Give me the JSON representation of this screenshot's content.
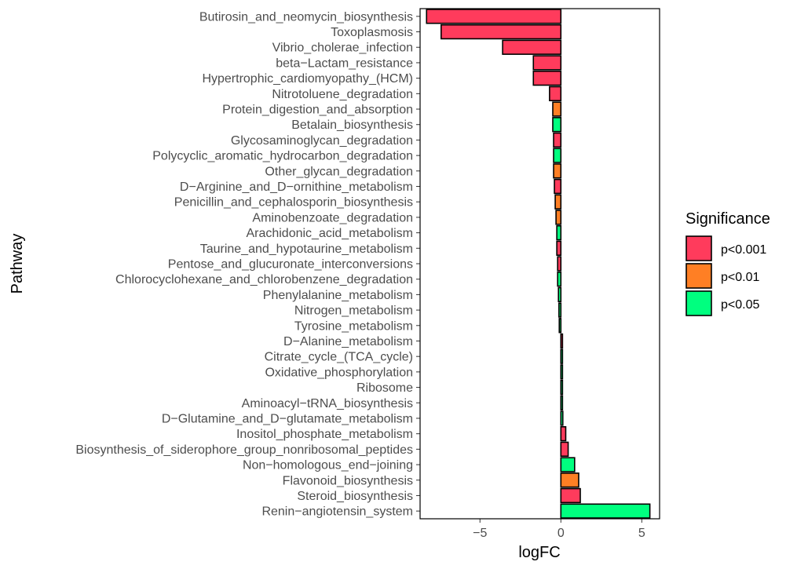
{
  "chart_data": {
    "type": "bar",
    "orientation": "horizontal",
    "title": "",
    "xlabel": "logFC",
    "ylabel": "Pathway",
    "xlim": [
      -8.7,
      6.1
    ],
    "xticks": [
      -5,
      0,
      5
    ],
    "xtick_labels": [
      "−5",
      "0",
      "5"
    ],
    "grid": false,
    "legend": {
      "title": "Significance",
      "position": "right",
      "entries": [
        {
          "label": "p<0.001",
          "color": "#FF3B5C"
        },
        {
          "label": "p<0.01",
          "color": "#FF7F24"
        },
        {
          "label": "p<0.05",
          "color": "#00FF7F"
        }
      ]
    },
    "bars": [
      {
        "pathway": "Butirosin_and_neomycin_biosynthesis",
        "logFC": -8.3,
        "significance": "p<0.001"
      },
      {
        "pathway": "Toxoplasmosis",
        "logFC": -7.4,
        "significance": "p<0.001"
      },
      {
        "pathway": "Vibrio_cholerae_infection",
        "logFC": -3.6,
        "significance": "p<0.001"
      },
      {
        "pathway": "beta−Lactam_resistance",
        "logFC": -1.7,
        "significance": "p<0.001"
      },
      {
        "pathway": "Hypertrophic_cardiomyopathy_(HCM)",
        "logFC": -1.7,
        "significance": "p<0.001"
      },
      {
        "pathway": "Nitrotoluene_degradation",
        "logFC": -0.7,
        "significance": "p<0.001"
      },
      {
        "pathway": "Protein_digestion_and_absorption",
        "logFC": -0.5,
        "significance": "p<0.01"
      },
      {
        "pathway": "Betalain_biosynthesis",
        "logFC": -0.5,
        "significance": "p<0.05"
      },
      {
        "pathway": "Glycosaminoglycan_degradation",
        "logFC": -0.45,
        "significance": "p<0.001"
      },
      {
        "pathway": "Polycyclic_aromatic_hydrocarbon_degradation",
        "logFC": -0.45,
        "significance": "p<0.05"
      },
      {
        "pathway": "Other_glycan_degradation",
        "logFC": -0.45,
        "significance": "p<0.01"
      },
      {
        "pathway": "D−Arginine_and_D−ornithine_metabolism",
        "logFC": -0.4,
        "significance": "p<0.001"
      },
      {
        "pathway": "Penicillin_and_cephalosporin_biosynthesis",
        "logFC": -0.35,
        "significance": "p<0.01"
      },
      {
        "pathway": "Aminobenzoate_degradation",
        "logFC": -0.3,
        "significance": "p<0.01"
      },
      {
        "pathway": "Arachidonic_acid_metabolism",
        "logFC": -0.25,
        "significance": "p<0.05"
      },
      {
        "pathway": "Taurine_and_hypotaurine_metabolism",
        "logFC": -0.25,
        "significance": "p<0.001"
      },
      {
        "pathway": "Pentose_and_glucuronate_interconversions",
        "logFC": -0.2,
        "significance": "p<0.001"
      },
      {
        "pathway": "Chlorocyclohexane_and_chlorobenzene_degradation",
        "logFC": -0.2,
        "significance": "p<0.05"
      },
      {
        "pathway": "Phenylalanine_metabolism",
        "logFC": -0.15,
        "significance": "p<0.05"
      },
      {
        "pathway": "Nitrogen_metabolism",
        "logFC": -0.12,
        "significance": "p<0.05"
      },
      {
        "pathway": "Tyrosine_metabolism",
        "logFC": -0.1,
        "significance": "p<0.05"
      },
      {
        "pathway": "D−Alanine_metabolism",
        "logFC": 0.1,
        "significance": "p<0.001"
      },
      {
        "pathway": "Citrate_cycle_(TCA_cycle)",
        "logFC": 0.1,
        "significance": "p<0.05"
      },
      {
        "pathway": "Oxidative_phosphorylation",
        "logFC": 0.1,
        "significance": "p<0.05"
      },
      {
        "pathway": "Ribosome",
        "logFC": 0.1,
        "significance": "p<0.05"
      },
      {
        "pathway": "Aminoacyl−tRNA_biosynthesis",
        "logFC": 0.1,
        "significance": "p<0.05"
      },
      {
        "pathway": "D−Glutamine_and_D−glutamate_metabolism",
        "logFC": 0.12,
        "significance": "p<0.05"
      },
      {
        "pathway": "Inositol_phosphate_metabolism",
        "logFC": 0.3,
        "significance": "p<0.001"
      },
      {
        "pathway": "Biosynthesis_of_siderophore_group_nonribosomal_peptides",
        "logFC": 0.45,
        "significance": "p<0.001"
      },
      {
        "pathway": "Non−homologous_end−joining",
        "logFC": 0.85,
        "significance": "p<0.05"
      },
      {
        "pathway": "Flavonoid_biosynthesis",
        "logFC": 1.1,
        "significance": "p<0.01"
      },
      {
        "pathway": "Steroid_biosynthesis",
        "logFC": 1.2,
        "significance": "p<0.001"
      },
      {
        "pathway": "Renin−angiotensin_system",
        "logFC": 5.5,
        "significance": "p<0.05"
      }
    ]
  }
}
